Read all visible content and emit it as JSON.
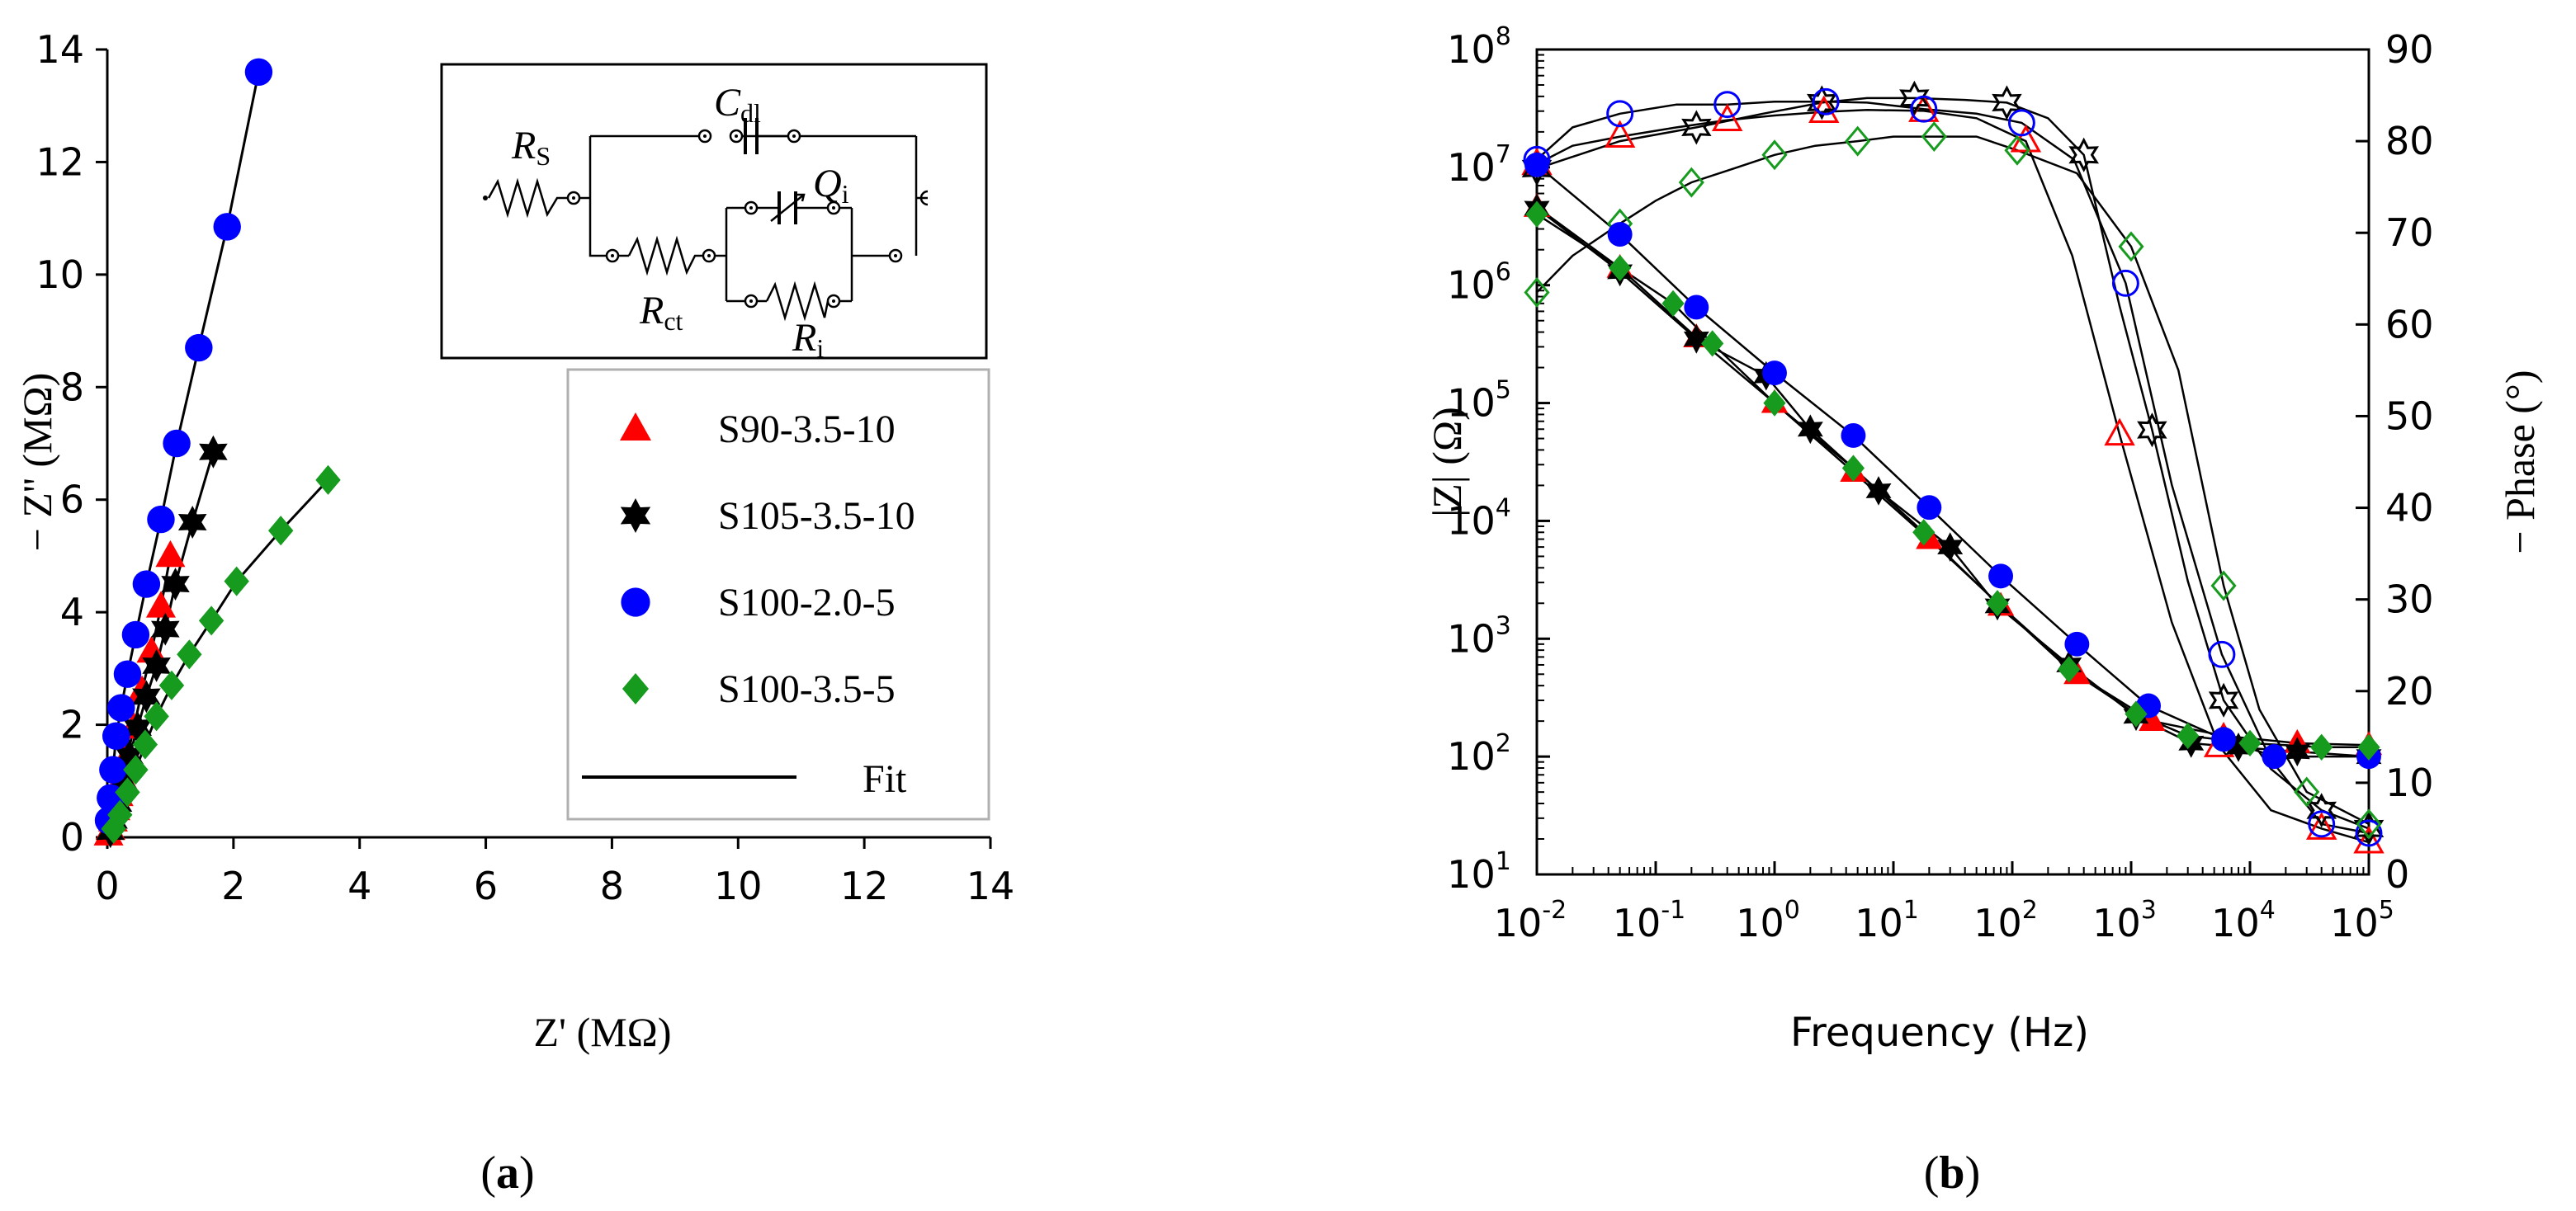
{
  "chart_data": [
    {
      "type": "scatter",
      "panel_label": "a",
      "xlabel": "Z' (MΩ)",
      "ylabel": "− Z'' (MΩ)",
      "xlim": [
        0,
        14
      ],
      "ylim": [
        0,
        14
      ],
      "x_ticks": [
        0,
        2,
        4,
        6,
        8,
        10,
        12,
        14
      ],
      "y_ticks": [
        0,
        2,
        4,
        6,
        8,
        10,
        12,
        14
      ],
      "legend_position": "right",
      "fit_label": "Fit",
      "circuit": {
        "Rs": {
          "main": "R",
          "sub": "S"
        },
        "Cdl": {
          "main": "C",
          "sub": "dl"
        },
        "Qi": {
          "main": "Q",
          "sub": "i"
        },
        "Rct": {
          "main": "R",
          "sub": "ct"
        },
        "Ri": {
          "main": "R",
          "sub": "i"
        }
      },
      "series": [
        {
          "name": "S90-3.5-10",
          "marker": "triangle",
          "color": "#ff0000",
          "x": [
            0.02,
            0.05,
            0.09,
            0.13,
            0.18,
            0.24,
            0.32,
            0.42,
            0.55,
            0.7,
            0.85,
            1.0
          ],
          "y": [
            0.05,
            0.15,
            0.3,
            0.5,
            0.75,
            1.05,
            1.45,
            1.95,
            2.6,
            3.3,
            4.1,
            5.0
          ]
        },
        {
          "name": "S105-3.5-10",
          "marker": "star",
          "color": "#000000",
          "x": [
            0.05,
            0.1,
            0.17,
            0.25,
            0.35,
            0.48,
            0.62,
            0.78,
            0.92,
            1.08,
            1.35,
            1.68
          ],
          "y": [
            0.1,
            0.3,
            0.6,
            1.0,
            1.45,
            1.95,
            2.5,
            3.05,
            3.7,
            4.5,
            5.6,
            6.85
          ]
        },
        {
          "name": "S100-2.0-5",
          "marker": "circle",
          "color": "#0000ff",
          "x": [
            0.02,
            0.05,
            0.09,
            0.14,
            0.22,
            0.32,
            0.45,
            0.62,
            0.85,
            1.1,
            1.45,
            1.9,
            2.4
          ],
          "y": [
            0.3,
            0.7,
            1.2,
            1.8,
            2.3,
            2.9,
            3.6,
            4.5,
            5.65,
            7.0,
            8.7,
            10.85,
            13.6
          ]
        },
        {
          "name": "S100-3.5-5",
          "marker": "diamond",
          "color": "#169b1e",
          "x": [
            0.1,
            0.2,
            0.32,
            0.45,
            0.6,
            0.78,
            1.02,
            1.3,
            1.65,
            2.05,
            2.75,
            3.5
          ],
          "y": [
            0.15,
            0.4,
            0.8,
            1.2,
            1.65,
            2.15,
            2.7,
            3.25,
            3.85,
            4.55,
            5.45,
            6.35
          ]
        }
      ]
    },
    {
      "type": "scatter",
      "panel_label": "b",
      "xlabel": "Frequency (Hz)",
      "ylabel": "|Z| (Ω)",
      "y2label": "− Phase (°)",
      "xscale": "log",
      "yscale": "log",
      "xlim_exp": [
        -2,
        5
      ],
      "ylim_exp": [
        1,
        8
      ],
      "y2lim": [
        0,
        90
      ],
      "y2_ticks": [
        0,
        10,
        20,
        30,
        40,
        50,
        60,
        70,
        80,
        90
      ],
      "log_base": "10",
      "x_tick_exponents": [
        "-2",
        "-1",
        "0",
        "1",
        "2",
        "3",
        "4",
        "5"
      ],
      "y_tick_exponents": [
        "1",
        "2",
        "3",
        "4",
        "5",
        "6",
        "7",
        "8"
      ],
      "magnitude_markers": "filled",
      "phase_markers": "open",
      "series": [
        {
          "name": "S90-3.5-10",
          "marker": "triangle",
          "color": "#ff0000",
          "freq": [
            0.01,
            0.05,
            0.22,
            1,
            4.6,
            20,
            80,
            350,
            1500,
            6000,
            25000,
            100000
          ],
          "modZ": [
            4600000.0,
            1400000.0,
            360000.0,
            100000.0,
            26000.0,
            7000.0,
            1900.0,
            500.0,
            200.0,
            150.0,
            130.0,
            125.0
          ],
          "phase_freq": [
            0.01,
            0.02,
            0.05,
            0.15,
            0.4,
            1,
            2.6,
            6,
            18,
            50,
            130,
            320,
            800,
            2200,
            5500,
            15000,
            40000,
            100000
          ],
          "phase": [
            77.5,
            79.5,
            80.5,
            81.5,
            82.3,
            82.8,
            83.2,
            83.4,
            83.3,
            82.5,
            80.0,
            67.5,
            48.0,
            27.5,
            14.0,
            7.0,
            5.0,
            3.5
          ]
        },
        {
          "name": "S105-3.5-10",
          "marker": "star",
          "color": "#000000",
          "freq": [
            0.01,
            0.05,
            0.22,
            0.85,
            2,
            7.5,
            30,
            75,
            300,
            1100,
            3200,
            8000,
            25000,
            100000
          ],
          "modZ": [
            4500000.0,
            1300000.0,
            350000.0,
            170000.0,
            60000.0,
            18000.0,
            6000.0,
            1900.0,
            600.0,
            220.0,
            130.0,
            120.0,
            110.0,
            100.0
          ],
          "phase_freq": [
            0.01,
            0.05,
            0.22,
            0.8,
            2.5,
            6,
            15,
            40,
            90,
            200,
            400,
            800,
            1500,
            3000,
            6000,
            15000,
            40000,
            100000
          ],
          "phase": [
            77.0,
            80.0,
            81.5,
            83.0,
            84.2,
            84.7,
            84.7,
            84.5,
            84.2,
            82.5,
            78.5,
            62.0,
            48.5,
            32.0,
            19.0,
            11.5,
            7.0,
            5.0
          ]
        },
        {
          "name": "S100-2.0-5",
          "marker": "circle",
          "color": "#0000ff",
          "freq": [
            0.01,
            0.05,
            0.22,
            1,
            4.6,
            20,
            80,
            350,
            1400,
            6000,
            16000,
            100000
          ],
          "modZ": [
            10500000.0,
            2700000.0,
            650000.0,
            180000.0,
            53000.0,
            13000.0,
            3400.0,
            900.0,
            270.0,
            140.0,
            100.0,
            100.0
          ],
          "phase_freq": [
            0.01,
            0.02,
            0.05,
            0.15,
            0.4,
            1,
            2.7,
            6,
            18,
            50,
            120,
            330,
            900,
            2200,
            5800,
            15000,
            40000,
            100000
          ],
          "phase": [
            78.0,
            81.5,
            83.0,
            84.0,
            84.0,
            84.3,
            84.3,
            84.2,
            83.5,
            83.0,
            82.0,
            78.0,
            64.5,
            42.5,
            24.0,
            12.5,
            5.5,
            4.5
          ]
        },
        {
          "name": "S100-3.5-5",
          "marker": "diamond",
          "color": "#169b1e",
          "freq": [
            0.01,
            0.05,
            0.14,
            0.3,
            1,
            4.6,
            18,
            75,
            300,
            1100,
            3000,
            10000,
            40000,
            100000
          ],
          "modZ": [
            4000000.0,
            1400000.0,
            700000.0,
            320000.0,
            100000.0,
            28000.0,
            8000.0,
            2000.0,
            550.0,
            230.0,
            150.0,
            130.0,
            120.0,
            120.0
          ],
          "phase_freq": [
            0.01,
            0.02,
            0.05,
            0.1,
            0.2,
            0.45,
            1,
            2.2,
            5,
            10,
            22,
            50,
            110,
            350,
            1000,
            2500,
            6000,
            12000,
            30000,
            100000
          ],
          "phase": [
            63.5,
            67.5,
            71.0,
            73.5,
            75.5,
            77.0,
            78.5,
            79.5,
            80.0,
            80.5,
            80.5,
            80.5,
            79.0,
            76.5,
            68.5,
            55.0,
            31.5,
            18.0,
            9.0,
            5.5
          ]
        }
      ]
    }
  ]
}
